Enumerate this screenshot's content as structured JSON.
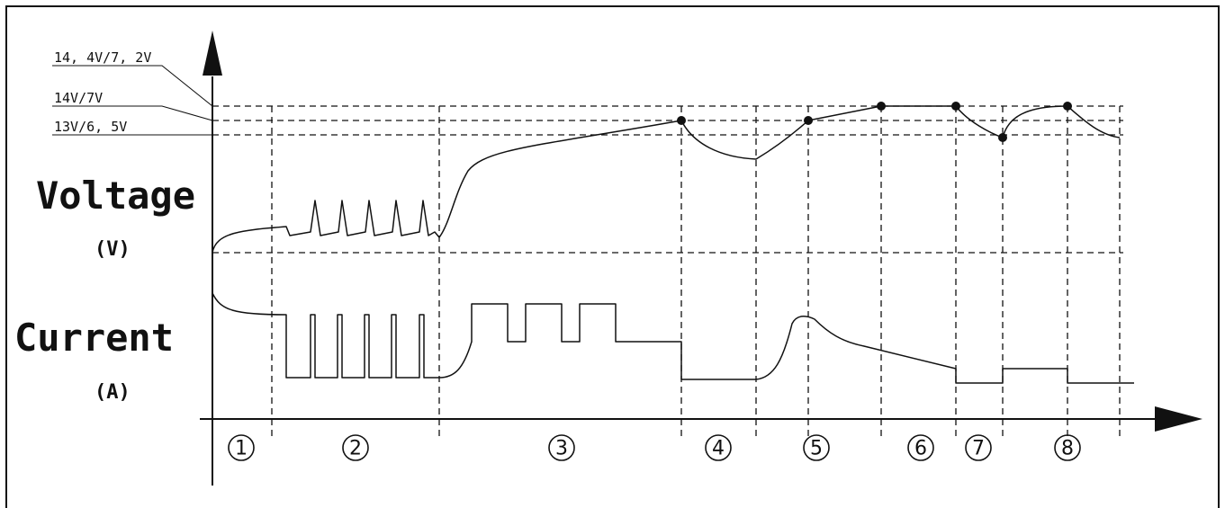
{
  "labels": {
    "v_ref_high": "14, 4V/7, 2V",
    "v_ref_mid": "14V/7V",
    "v_ref_low": "13V/6, 5V",
    "voltage_title": "Voltage",
    "voltage_unit": "(V)",
    "current_title": "Current",
    "current_unit": "(A)"
  },
  "stages": [
    {
      "number": "1",
      "glyph": "①"
    },
    {
      "number": "2",
      "glyph": "②"
    },
    {
      "number": "3",
      "glyph": "③"
    },
    {
      "number": "4",
      "glyph": "④"
    },
    {
      "number": "5",
      "glyph": "⑤"
    },
    {
      "number": "6",
      "glyph": "⑥"
    },
    {
      "number": "7",
      "glyph": "⑦"
    },
    {
      "number": "8",
      "glyph": "⑧"
    }
  ],
  "colors": {
    "line": "#111111",
    "background": "#ffffff"
  }
}
